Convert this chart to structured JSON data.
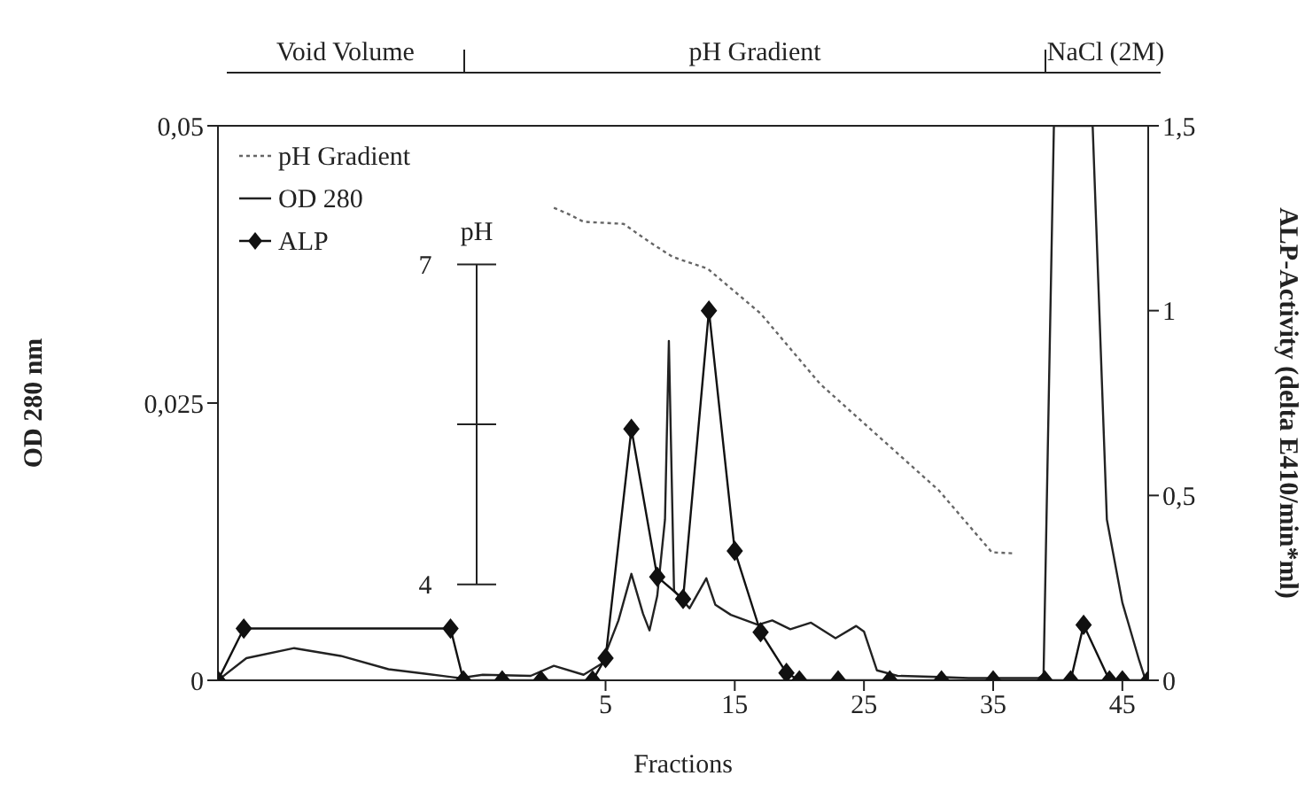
{
  "chart_data": {
    "type": "line",
    "xlabel": "Fractions",
    "ylabel": "OD 280 nm",
    "y2label": "ALP-Activity (delta E410/min*ml)",
    "y3label": "pH",
    "xlim": [
      -25,
      47
    ],
    "xticks": [
      5,
      15,
      25,
      35,
      45
    ],
    "ylim": [
      0,
      0.05
    ],
    "yticks": [
      0,
      {
        "value": 0.025,
        "label": "0,025"
      },
      {
        "value": 0.05,
        "label": "0,05"
      }
    ],
    "y2lim": [
      0,
      1.5
    ],
    "y2ticks": [
      0,
      {
        "value": 0.5,
        "label": "0,5"
      },
      1,
      {
        "value": 1.5,
        "label": "1,5"
      }
    ],
    "y3lim": [
      3.1,
      8.3
    ],
    "y3ticks": [
      4,
      7
    ],
    "legend": "top left",
    "annotations": [
      "Void Volume",
      "pH Gradient",
      "NaCl (2M)"
    ],
    "series": [
      {
        "name": "pH Gradient",
        "color": "#666666",
        "axis": "y3",
        "line_style": "dotted",
        "marker": "none",
        "x": [
          1,
          2,
          3.3,
          6.4,
          8.4,
          10.2,
          12.9,
          17,
          21.6,
          26.2,
          30.8,
          34.9,
          36.7
        ],
        "values": [
          7.53,
          7.48,
          7.4,
          7.38,
          7.21,
          7.07,
          6.96,
          6.54,
          5.88,
          5.38,
          4.88,
          4.3,
          4.29
        ]
      },
      {
        "name": "OD 280",
        "color": "#222222",
        "axis": "y",
        "line_style": "solid",
        "marker": "none",
        "x": [
          -25,
          -22.8,
          -19.1,
          -15.5,
          -11.8,
          -9,
          -6.3,
          -4.5,
          -0.8,
          1,
          3.3,
          4.7,
          6,
          7,
          7.9,
          8.4,
          9,
          9.6,
          9.9,
          10.3,
          11.5,
          12.8,
          13.5,
          14.7,
          16.8,
          17.9,
          19.3,
          20.9,
          22.8,
          24.4,
          25,
          26,
          27.6,
          30.8,
          33.1,
          38.5,
          38.9,
          39.7,
          42.7,
          43.8,
          45,
          46.3,
          46.8
        ],
        "values": [
          0,
          0.002,
          0.0029,
          0.0022,
          0.001,
          0.0006,
          0.0002,
          0.0005,
          0.0004,
          0.0013,
          0.0005,
          0.0015,
          0.0054,
          0.0096,
          0.006,
          0.0045,
          0.0076,
          0.0145,
          0.0306,
          0.0081,
          0.0065,
          0.0092,
          0.0068,
          0.0059,
          0.005,
          0.0054,
          0.0046,
          0.0052,
          0.0038,
          0.0049,
          0.0044,
          0.0009,
          0.0004,
          0.0003,
          0.0002,
          0.0002,
          0.0005,
          0.05,
          0.05,
          0.0145,
          0.007,
          0.0018,
          0
        ]
      },
      {
        "name": "ALP",
        "color": "#111111",
        "axis": "y2",
        "line_style": "solid",
        "marker": "diamond",
        "x": [
          -25,
          -23,
          -7,
          -6,
          -3,
          0,
          4,
          5,
          7,
          9,
          11,
          13,
          15,
          17,
          19,
          20,
          23,
          27,
          31,
          35,
          39,
          41,
          42,
          44,
          45,
          47
        ],
        "values": [
          0,
          0.14,
          0.14,
          0,
          0,
          0,
          0,
          0.06,
          0.68,
          0.28,
          0.22,
          1.0,
          0.35,
          0.13,
          0.02,
          0,
          0,
          0,
          0,
          0,
          0,
          0,
          0.15,
          0,
          0,
          0
        ]
      }
    ]
  }
}
